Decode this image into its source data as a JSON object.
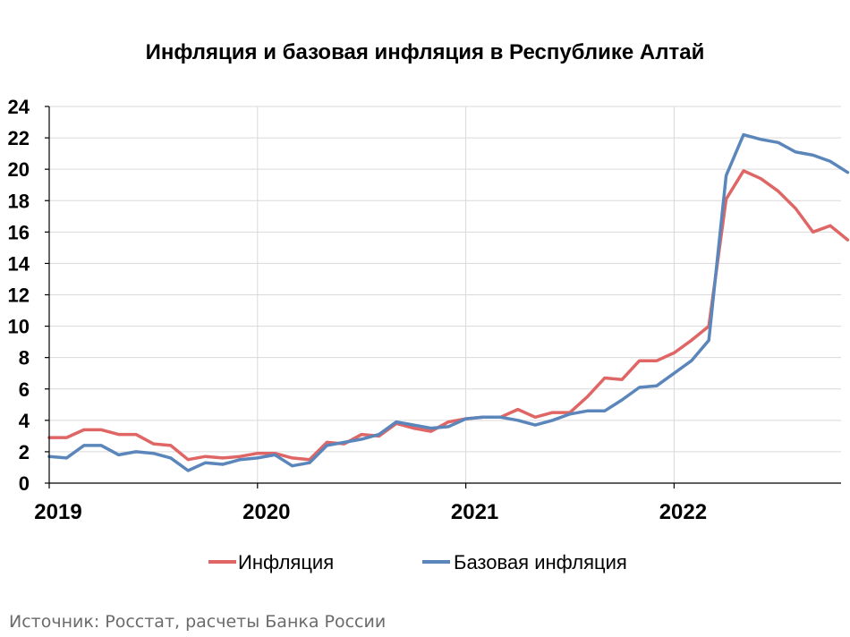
{
  "chart_data": {
    "type": "line",
    "title": "Инфляция и базовая инфляция в Республике Алтай",
    "xlabel": "",
    "ylabel": "",
    "x_start": "2019-01",
    "x_tick_labels": [
      "2019",
      "2020",
      "2021",
      "2022"
    ],
    "y_tick_labels": [
      "0",
      "2",
      "4",
      "6",
      "8",
      "10",
      "12",
      "14",
      "16",
      "18",
      "20",
      "22",
      "24"
    ],
    "ylim": [
      0,
      24
    ],
    "grid": true,
    "legend_position": "bottom",
    "series": [
      {
        "name": "Инфляция",
        "color": "#e06666",
        "values": [
          2.9,
          2.9,
          3.4,
          3.4,
          3.1,
          3.1,
          2.5,
          2.4,
          1.5,
          1.7,
          1.6,
          1.7,
          1.9,
          1.9,
          1.6,
          1.5,
          2.6,
          2.5,
          3.1,
          3.0,
          3.8,
          3.5,
          3.3,
          3.9,
          4.1,
          4.2,
          4.2,
          4.7,
          4.2,
          4.5,
          4.5,
          5.5,
          6.7,
          6.6,
          7.8,
          7.8,
          8.3,
          9.1,
          10.0,
          18.1,
          19.9,
          19.4,
          18.6,
          17.5,
          16.0,
          16.4,
          15.5
        ]
      },
      {
        "name": "Базовая инфляция",
        "color": "#5b86bb",
        "values": [
          1.7,
          1.6,
          2.4,
          2.4,
          1.8,
          2.0,
          1.9,
          1.6,
          0.8,
          1.3,
          1.2,
          1.5,
          1.6,
          1.8,
          1.1,
          1.3,
          2.4,
          2.6,
          2.8,
          3.1,
          3.9,
          3.7,
          3.5,
          3.6,
          4.1,
          4.2,
          4.2,
          4.0,
          3.7,
          4.0,
          4.4,
          4.6,
          4.6,
          5.3,
          6.1,
          6.2,
          7.0,
          7.8,
          9.1,
          19.6,
          22.2,
          21.9,
          21.7,
          21.1,
          20.9,
          20.5,
          19.8
        ]
      }
    ]
  },
  "source": "Источник: Росстат, расчеты Банка России"
}
